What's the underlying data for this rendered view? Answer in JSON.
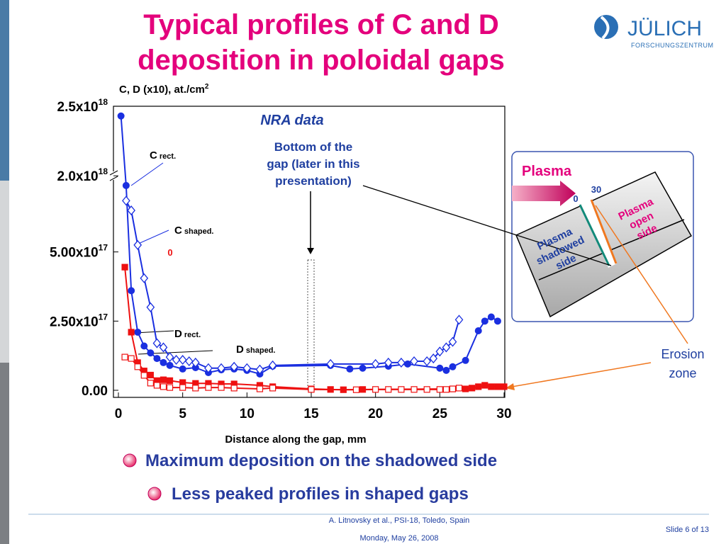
{
  "header": {
    "title": [
      "Typical profiles of C and D",
      "deposition in poloidal gaps"
    ],
    "logo": "JÜLICH",
    "logo_sub": "FORSCHUNGSZENTRUM"
  },
  "chart_data": {
    "type": "line",
    "y_label": "C, D (x10), at./cm",
    "y_label_sup": "2",
    "x_label": "Distance along the gap, mm",
    "xlim": [
      0,
      30
    ],
    "xticks": [
      0,
      5,
      10,
      15,
      20,
      25,
      30
    ],
    "ylim": [
      0,
      2.5e+18
    ],
    "ybreak": [
      7.5e+17,
      1.95e+18
    ],
    "yticks": [
      {
        "value": 0,
        "label": "0.00"
      },
      {
        "value": 2.5e+17,
        "label": "2.50x10",
        "sup": "17"
      },
      {
        "value": 5e+17,
        "label": "5.00x10",
        "sup": "17"
      },
      {
        "value": 2e+18,
        "label": "2.0x10",
        "sup": "18"
      },
      {
        "value": 2.5e+18,
        "label": "2.5x10",
        "sup": "18"
      }
    ],
    "annotations": [
      {
        "text": [
          "NRA data"
        ]
      },
      {
        "text": [
          "Bottom of the",
          "gap (later in this",
          "presentation)"
        ]
      },
      {
        "text": [
          "0"
        ]
      }
    ],
    "series": [
      {
        "name": "C rect.",
        "color": "#1a2fe0",
        "marker": "circle",
        "x": [
          0.2,
          0.6,
          1,
          1.5,
          2,
          2.5,
          3,
          3.5,
          4,
          5,
          6,
          7,
          8,
          9,
          10,
          11,
          12,
          16.5,
          18,
          19,
          21,
          22.5,
          25,
          25.5,
          26,
          27,
          28,
          28.5,
          29,
          29.5
        ],
        "values": [
          2.43e+18,
          7.4e+17,
          3.6e+17,
          2.1e+17,
          1.6e+17,
          1.35e+17,
          1.15e+17,
          1e+17,
          9e+16,
          7.7e+16,
          8.2e+16,
          6.4e+16,
          7.4e+16,
          7.7e+16,
          7.2e+16,
          5.9e+16,
          8.7e+16,
          9e+16,
          7.7e+16,
          8e+16,
          8.7e+16,
          9.5e+16,
          8e+16,
          7.2e+16,
          8.5e+16,
          1.08e+17,
          2.15e+17,
          2.5e+17,
          2.65e+17,
          2.5e+17
        ]
      },
      {
        "name": "C shaped.",
        "color": "#1a2fe0",
        "marker": "diamond",
        "x": [
          0.6,
          1,
          1.5,
          2,
          2.5,
          3,
          3.5,
          4,
          4.5,
          5,
          5.5,
          6,
          7,
          8,
          9,
          10,
          11,
          12,
          16.5,
          20,
          21,
          22,
          23,
          24,
          24.5,
          25,
          25.5,
          26,
          26.5
        ],
        "values": [
          6.85e+17,
          6.5e+17,
          5.25e+17,
          4.05e+17,
          3e+17,
          1.7e+17,
          1.55e+17,
          1.2e+17,
          1.1e+17,
          1.1e+17,
          1.05e+17,
          1e+17,
          8e+16,
          8e+16,
          8.5e+16,
          8e+16,
          7.5e+16,
          9e+16,
          9.5e+16,
          9.5e+16,
          1e+17,
          1e+17,
          1.05e+17,
          1.05e+17,
          1.15e+17,
          1.4e+17,
          1.55e+17,
          1.75e+17,
          2.55e+17
        ]
      },
      {
        "name": "D rect.",
        "color": "#ee1111",
        "marker": "square",
        "x": [
          0.5,
          1,
          1.5,
          2,
          2.5,
          3,
          3.5,
          4,
          5,
          6,
          7,
          8,
          9,
          11,
          12,
          15,
          16.5,
          17.5,
          19,
          26,
          27,
          27.5,
          28,
          28.5,
          29,
          29.5,
          30
        ],
        "values": [
          4.45e+17,
          2.1e+17,
          1e+17,
          7e+16,
          5.5e+16,
          3.5e+16,
          3.8e+16,
          3.5e+16,
          2.8e+16,
          2.5e+16,
          2.5e+16,
          2.3e+16,
          2.3e+16,
          1.8e+16,
          1.3e+16,
          5000000000000000.0,
          3000000000000000.0,
          2000000000000000.0,
          3000000000000000.0,
          5000000000000000.0,
          5000000000000000.0,
          8000000000000000.0,
          1.3e+16,
          1.8e+16,
          1.3e+16,
          1.3e+16,
          1.3e+16
        ]
      },
      {
        "name": "D shaped.",
        "color": "#ee1111",
        "marker": "open-square",
        "x": [
          0.5,
          1,
          1.5,
          2,
          2.5,
          3,
          3.5,
          4,
          5,
          6,
          7,
          8,
          9,
          11,
          12,
          15,
          18.5,
          20,
          21,
          22,
          23,
          24,
          25,
          25.5,
          26,
          26.5
        ],
        "values": [
          1.2e+17,
          1.15e+17,
          8.5e+16,
          5.4e+16,
          2.6e+16,
          1.8e+16,
          1.3e+16,
          1e+16,
          1e+16,
          8000000000000000.0,
          1e+16,
          1e+16,
          8000000000000000.0,
          5000000000000000.0,
          8000000000000000.0,
          3000000000000000.0,
          2000000000000000.0,
          3000000000000000.0,
          3000000000000000.0,
          3000000000000000.0,
          3000000000000000.0,
          3000000000000000.0,
          3000000000000000.0,
          3000000000000000.0,
          5000000000000000.0,
          8000000000000000.0
        ]
      }
    ]
  },
  "inset": {
    "plasma": "Plasma",
    "start": "0",
    "end": "30",
    "shadowed": [
      "Plasma",
      "shadowed",
      "side"
    ],
    "open": [
      "Plasma",
      "open",
      "side"
    ],
    "erosion": [
      "Erosion",
      "zone"
    ]
  },
  "bullets": [
    "Maximum deposition on the shadowed side",
    "Less peaked profiles in shaped gaps"
  ],
  "footer": {
    "citation": "A. Litnovsky et al., PSI-18, Toledo, Spain",
    "date": "Monday, May 26, 2008",
    "slide": "Slide 6 of 13"
  }
}
